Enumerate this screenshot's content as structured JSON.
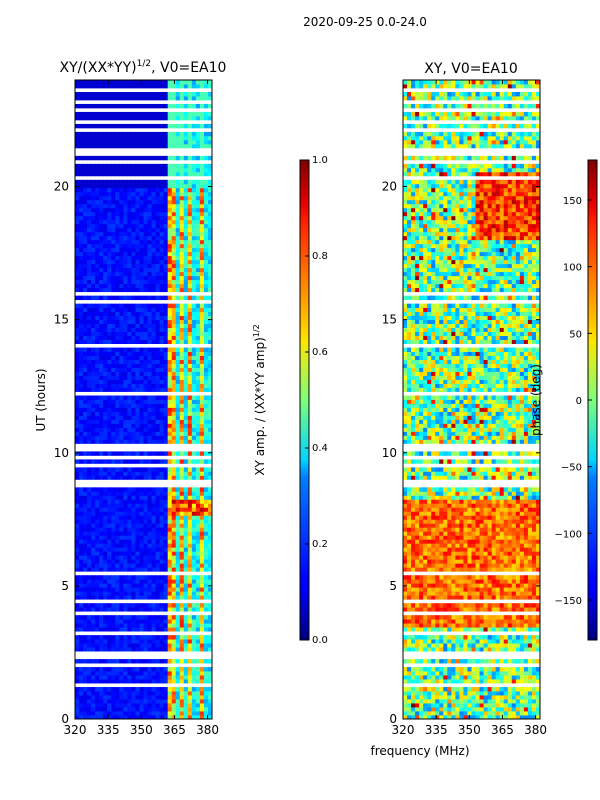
{
  "figure": {
    "suptitle": "2020-09-25 0.0-24.0",
    "xlabel": "frequency (MHz)"
  },
  "chart_data": [
    {
      "type": "heatmap",
      "title_main": "XY/(XX*YY)",
      "title_sup": "1/2",
      "title_rest": ", V0=EA10",
      "ylabel": "UT (hours)",
      "xlim": [
        320,
        382
      ],
      "ylim": [
        0,
        24
      ],
      "xticks": [
        320,
        335,
        350,
        365,
        380
      ],
      "yticks": [
        0,
        5,
        10,
        15,
        20
      ],
      "colorbar": {
        "label": "XY amp. / (XX*YY amp)^1/2",
        "label_main": "XY amp. / (XX*YY amp)",
        "label_sup": "1/2",
        "range": [
          0.0,
          1.0
        ],
        "ticks": [
          "0.0",
          "0.2",
          "0.4",
          "0.6",
          "0.8",
          "1.0"
        ],
        "tick_values": [
          0.0,
          0.2,
          0.4,
          0.6,
          0.8,
          1.0
        ],
        "colormap": "jet"
      },
      "bright_channels_mhz": [
        364,
        368,
        372,
        377
      ],
      "high_amplitude_ut_range": [
        7.7,
        8.3
      ]
    },
    {
      "type": "heatmap",
      "title": "XY, V0=EA10",
      "ylabel": "",
      "xlim": [
        320,
        382
      ],
      "ylim": [
        0,
        24
      ],
      "xticks": [
        320,
        335,
        350,
        365,
        380
      ],
      "yticks": [
        0,
        5,
        10,
        15,
        20
      ],
      "colorbar": {
        "label": "phase (deg)",
        "range": [
          -180,
          180
        ],
        "ticks": [
          "−150",
          "−100",
          "−50",
          "0",
          "50",
          "100",
          "150"
        ],
        "tick_values": [
          -150,
          -100,
          -50,
          0,
          50,
          100,
          150
        ],
        "colormap": "jet"
      }
    }
  ]
}
